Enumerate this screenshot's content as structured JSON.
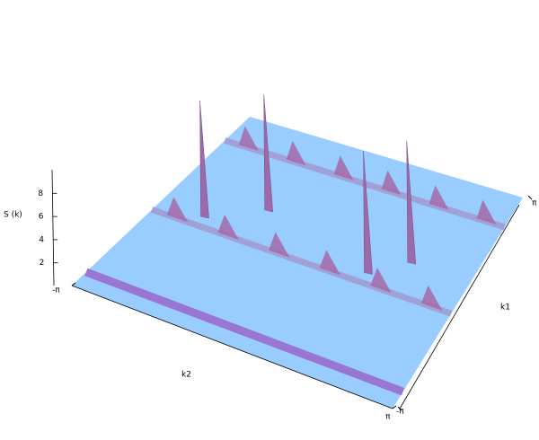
{
  "chart_data": {
    "type": "surface3d",
    "zlabel": "S (k)",
    "xlabel": "k1",
    "ylabel": "k2",
    "xlim": [
      -3.14159,
      3.14159
    ],
    "ylim": [
      -3.14159,
      3.14159
    ],
    "zlim": [
      0,
      10
    ],
    "xticks": [
      {
        "value": -3.14159,
        "label": "-π"
      },
      {
        "value": 3.14159,
        "label": "π"
      }
    ],
    "yticks": [
      {
        "value": -3.14159,
        "label": "-π"
      },
      {
        "value": 3.14159,
        "label": "π"
      }
    ],
    "zticks": [
      2,
      4,
      6,
      8
    ],
    "k1": [
      0,
      0.75,
      0,
      0.63
    ],
    "k2": [
      -2.2,
      -1.26,
      1.26,
      1.88
    ],
    "z": [
      10,
      10,
      10.5,
      10.5
    ],
    "color": "#9c6aa8",
    "surface_color": "#99ccff"
  }
}
